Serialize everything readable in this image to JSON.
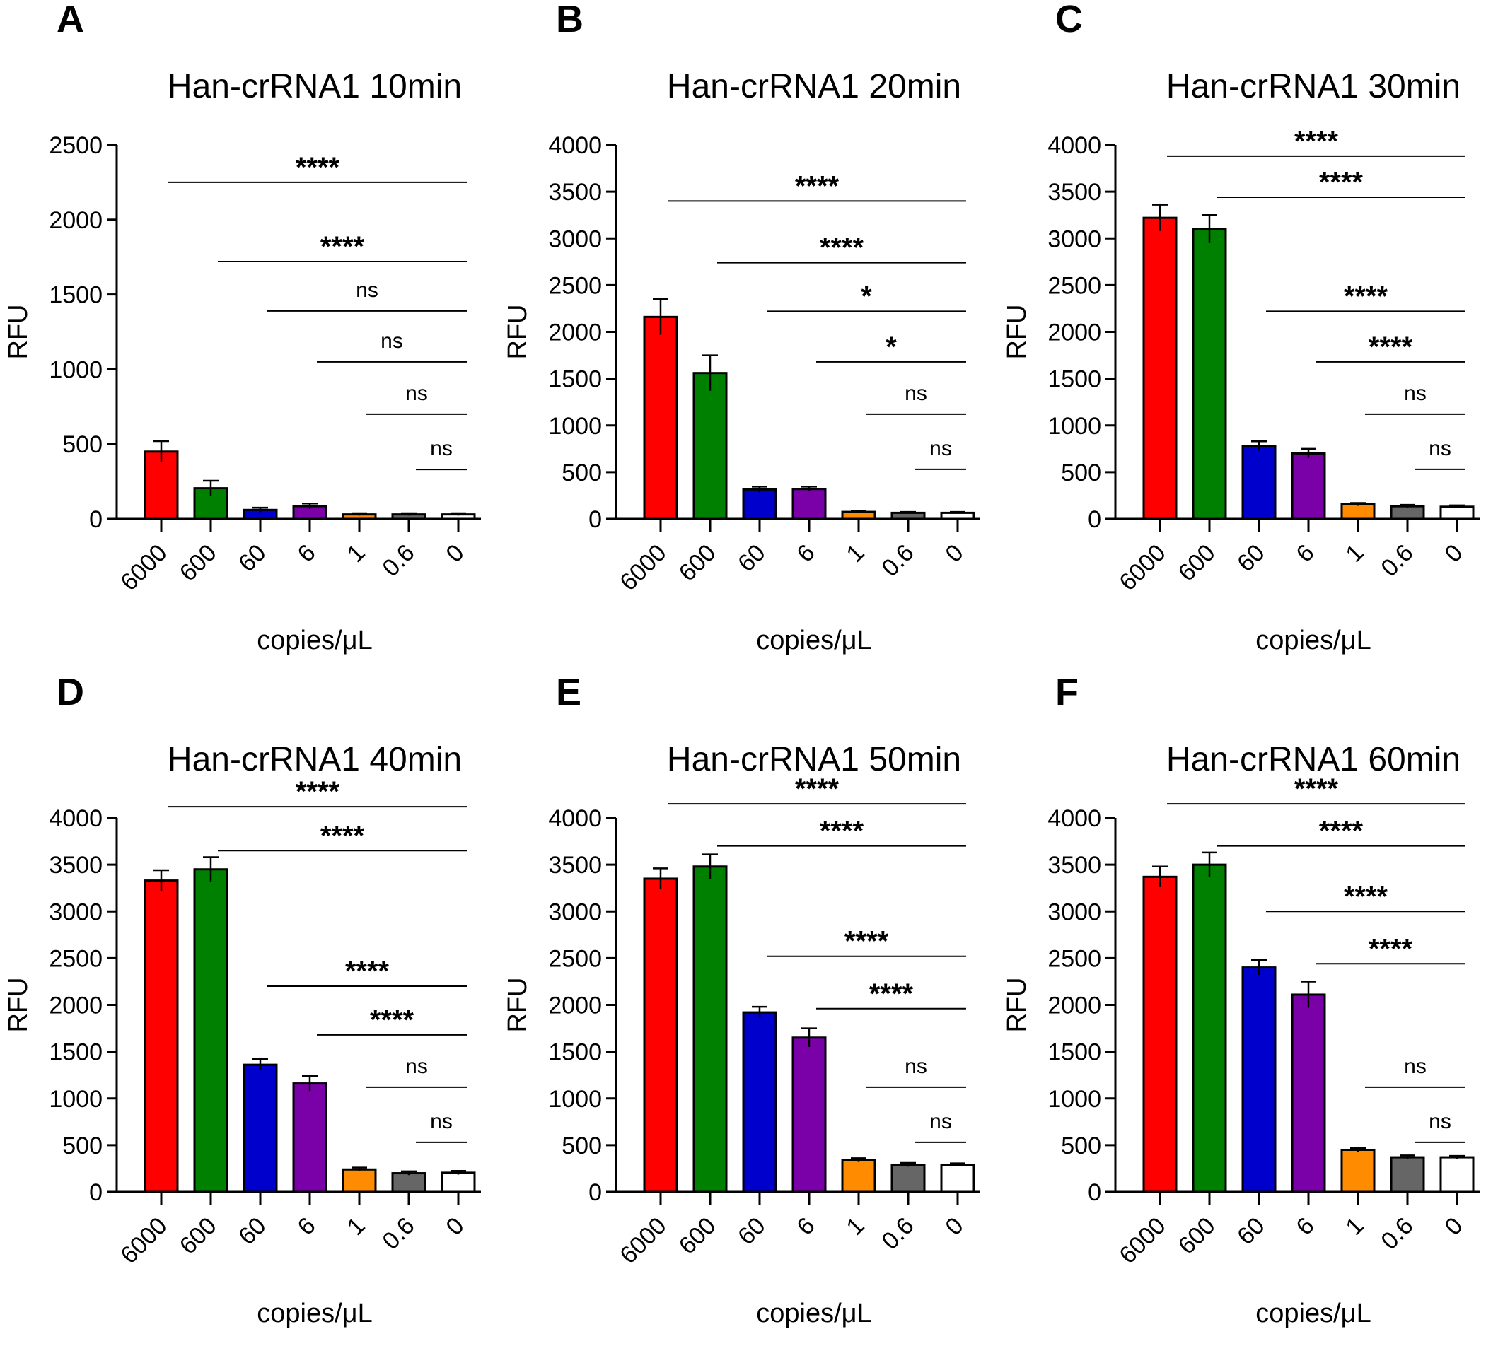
{
  "chart_data": [
    {
      "panel": "A",
      "type": "bar",
      "title": "Han-crRNA1 10min",
      "xlabel": "copies/μL",
      "ylabel": "RFU",
      "ylim": [
        0,
        2500
      ],
      "yticks": [
        0,
        500,
        1000,
        1500,
        2000,
        2500
      ],
      "categories": [
        "6000",
        "600",
        "60",
        "6",
        "1",
        "0.6",
        "0"
      ],
      "values": [
        450,
        205,
        60,
        85,
        30,
        30,
        30
      ],
      "errors": [
        70,
        50,
        15,
        18,
        8,
        8,
        8
      ],
      "colors": [
        "#ff0000",
        "#008000",
        "#0000cc",
        "#7a00a8",
        "#ff8c00",
        "#666666",
        "#ffffff"
      ],
      "grid": false,
      "comparisons": [
        {
          "from": "6000",
          "to": "0",
          "label": "****",
          "level": 2250
        },
        {
          "from": "600",
          "to": "0",
          "label": "****",
          "level": 1720
        },
        {
          "from": "60",
          "to": "0",
          "label": "ns",
          "level": 1390
        },
        {
          "from": "6",
          "to": "0",
          "label": "ns",
          "level": 1050
        },
        {
          "from": "1",
          "to": "0",
          "label": "ns",
          "level": 700
        },
        {
          "from": "0.6",
          "to": "0",
          "label": "ns",
          "level": 330
        }
      ]
    },
    {
      "panel": "B",
      "type": "bar",
      "title": "Han-crRNA1 20min",
      "xlabel": "copies/μL",
      "ylabel": "RFU",
      "ylim": [
        0,
        4000
      ],
      "yticks": [
        0,
        500,
        1000,
        1500,
        2000,
        2500,
        3000,
        3500,
        4000
      ],
      "categories": [
        "6000",
        "600",
        "60",
        "6",
        "1",
        "0.6",
        "0"
      ],
      "values": [
        2160,
        1560,
        315,
        320,
        75,
        65,
        65
      ],
      "errors": [
        190,
        190,
        30,
        25,
        10,
        10,
        10
      ],
      "colors": [
        "#ff0000",
        "#008000",
        "#0000cc",
        "#7a00a8",
        "#ff8c00",
        "#666666",
        "#ffffff"
      ],
      "grid": false,
      "comparisons": [
        {
          "from": "6000",
          "to": "0",
          "label": "****",
          "level": 3400
        },
        {
          "from": "600",
          "to": "0",
          "label": "****",
          "level": 2740
        },
        {
          "from": "60",
          "to": "0",
          "label": "*",
          "level": 2220
        },
        {
          "from": "6",
          "to": "0",
          "label": "*",
          "level": 1680
        },
        {
          "from": "1",
          "to": "0",
          "label": "ns",
          "level": 1120
        },
        {
          "from": "0.6",
          "to": "0",
          "label": "ns",
          "level": 530
        }
      ]
    },
    {
      "panel": "C",
      "type": "bar",
      "title": "Han-crRNA1 30min",
      "xlabel": "copies/μL",
      "ylabel": "RFU",
      "ylim": [
        0,
        4000
      ],
      "yticks": [
        0,
        500,
        1000,
        1500,
        2000,
        2500,
        3000,
        3500,
        4000
      ],
      "categories": [
        "6000",
        "600",
        "60",
        "6",
        "1",
        "0.6",
        "0"
      ],
      "values": [
        3220,
        3100,
        780,
        700,
        155,
        135,
        130
      ],
      "errors": [
        140,
        150,
        50,
        50,
        15,
        15,
        15
      ],
      "colors": [
        "#ff0000",
        "#008000",
        "#0000cc",
        "#7a00a8",
        "#ff8c00",
        "#666666",
        "#ffffff"
      ],
      "grid": false,
      "comparisons": [
        {
          "from": "6000",
          "to": "0",
          "label": "****",
          "level": 3880
        },
        {
          "from": "600",
          "to": "0",
          "label": "****",
          "level": 3440
        },
        {
          "from": "60",
          "to": "0",
          "label": "****",
          "level": 2220
        },
        {
          "from": "6",
          "to": "0",
          "label": "****",
          "level": 1680
        },
        {
          "from": "1",
          "to": "0",
          "label": "ns",
          "level": 1120
        },
        {
          "from": "0.6",
          "to": "0",
          "label": "ns",
          "level": 530
        }
      ]
    },
    {
      "panel": "D",
      "type": "bar",
      "title": "Han-crRNA1 40min",
      "xlabel": "copies/μL",
      "ylabel": "RFU",
      "ylim": [
        0,
        4000
      ],
      "yticks": [
        0,
        500,
        1000,
        1500,
        2000,
        2500,
        3000,
        3500,
        4000
      ],
      "categories": [
        "6000",
        "600",
        "60",
        "6",
        "1",
        "0.6",
        "0"
      ],
      "values": [
        3330,
        3450,
        1360,
        1160,
        240,
        200,
        205
      ],
      "errors": [
        110,
        130,
        60,
        80,
        20,
        20,
        20
      ],
      "colors": [
        "#ff0000",
        "#008000",
        "#0000cc",
        "#7a00a8",
        "#ff8c00",
        "#666666",
        "#ffffff"
      ],
      "grid": false,
      "comparisons": [
        {
          "from": "6000",
          "to": "0",
          "label": "****",
          "level": 4120
        },
        {
          "from": "600",
          "to": "0",
          "label": "****",
          "level": 3650
        },
        {
          "from": "60",
          "to": "0",
          "label": "****",
          "level": 2200
        },
        {
          "from": "6",
          "to": "0",
          "label": "****",
          "level": 1680
        },
        {
          "from": "1",
          "to": "0",
          "label": "ns",
          "level": 1120
        },
        {
          "from": "0.6",
          "to": "0",
          "label": "ns",
          "level": 530
        }
      ]
    },
    {
      "panel": "E",
      "type": "bar",
      "title": "Han-crRNA1 50min",
      "xlabel": "copies/μL",
      "ylabel": "RFU",
      "ylim": [
        0,
        4000
      ],
      "yticks": [
        0,
        500,
        1000,
        1500,
        2000,
        2500,
        3000,
        3500,
        4000
      ],
      "categories": [
        "6000",
        "600",
        "60",
        "6",
        "1",
        "0.6",
        "0"
      ],
      "values": [
        3350,
        3480,
        1920,
        1650,
        340,
        290,
        290
      ],
      "errors": [
        110,
        130,
        60,
        100,
        20,
        20,
        15
      ],
      "colors": [
        "#ff0000",
        "#008000",
        "#0000cc",
        "#7a00a8",
        "#ff8c00",
        "#666666",
        "#ffffff"
      ],
      "grid": false,
      "comparisons": [
        {
          "from": "6000",
          "to": "0",
          "label": "****",
          "level": 4150
        },
        {
          "from": "600",
          "to": "0",
          "label": "****",
          "level": 3700
        },
        {
          "from": "60",
          "to": "0",
          "label": "****",
          "level": 2520
        },
        {
          "from": "6",
          "to": "0",
          "label": "****",
          "level": 1960
        },
        {
          "from": "1",
          "to": "0",
          "label": "ns",
          "level": 1120
        },
        {
          "from": "0.6",
          "to": "0",
          "label": "ns",
          "level": 530
        }
      ]
    },
    {
      "panel": "F",
      "type": "bar",
      "title": "Han-crRNA1 60min",
      "xlabel": "copies/μL",
      "ylabel": "RFU",
      "ylim": [
        0,
        4000
      ],
      "yticks": [
        0,
        500,
        1000,
        1500,
        2000,
        2500,
        3000,
        3500,
        4000
      ],
      "categories": [
        "6000",
        "600",
        "60",
        "6",
        "1",
        "0.6",
        "0"
      ],
      "values": [
        3370,
        3500,
        2400,
        2110,
        450,
        370,
        370
      ],
      "errors": [
        110,
        130,
        80,
        140,
        20,
        20,
        15
      ],
      "colors": [
        "#ff0000",
        "#008000",
        "#0000cc",
        "#7a00a8",
        "#ff8c00",
        "#666666",
        "#ffffff"
      ],
      "grid": false,
      "comparisons": [
        {
          "from": "6000",
          "to": "0",
          "label": "****",
          "level": 4150
        },
        {
          "from": "600",
          "to": "0",
          "label": "****",
          "level": 3700
        },
        {
          "from": "60",
          "to": "0",
          "label": "****",
          "level": 3000
        },
        {
          "from": "6",
          "to": "0",
          "label": "****",
          "level": 2440
        },
        {
          "from": "1",
          "to": "0",
          "label": "ns",
          "level": 1120
        },
        {
          "from": "0.6",
          "to": "0",
          "label": "ns",
          "level": 530
        }
      ]
    }
  ]
}
